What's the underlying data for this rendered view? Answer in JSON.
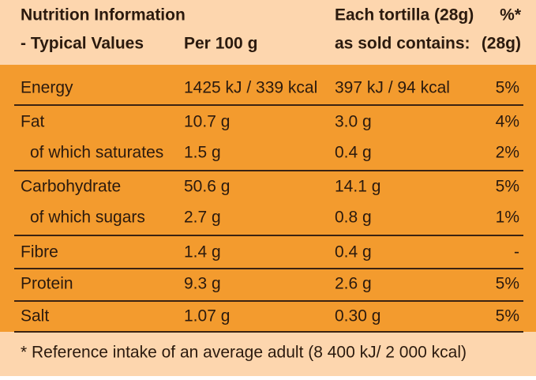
{
  "header": {
    "title_line1": "Nutrition Information",
    "title_line2": "- Typical Values",
    "col_per100": "Per 100 g",
    "col_each_line1": "Each tortilla (28g)",
    "col_each_line2": "as sold contains:",
    "col_pct_line1": "%*",
    "col_pct_line2": "(28g)"
  },
  "table": {
    "rows": [
      [
        "Energy",
        "1425 kJ / 339 kcal",
        "397 kJ / 94 kcal",
        "5%"
      ],
      [
        "Fat",
        "10.7 g",
        "3.0 g",
        "4%"
      ],
      [
        "of which saturates",
        "1.5 g",
        "0.4 g",
        "2%"
      ],
      [
        "Carbohydrate",
        "50.6 g",
        "14.1 g",
        "5%"
      ],
      [
        "of which sugars",
        "2.7 g",
        "0.8 g",
        "1%"
      ],
      [
        "Fibre",
        "1.4 g",
        "0.4 g",
        "-"
      ],
      [
        "Protein",
        "9.3 g",
        "2.6 g",
        "5%"
      ],
      [
        "Salt",
        "1.07 g",
        "0.30 g",
        "5%"
      ]
    ]
  },
  "footnote": "* Reference intake of an average adult (8 400 kJ/ 2 000 kcal)"
}
